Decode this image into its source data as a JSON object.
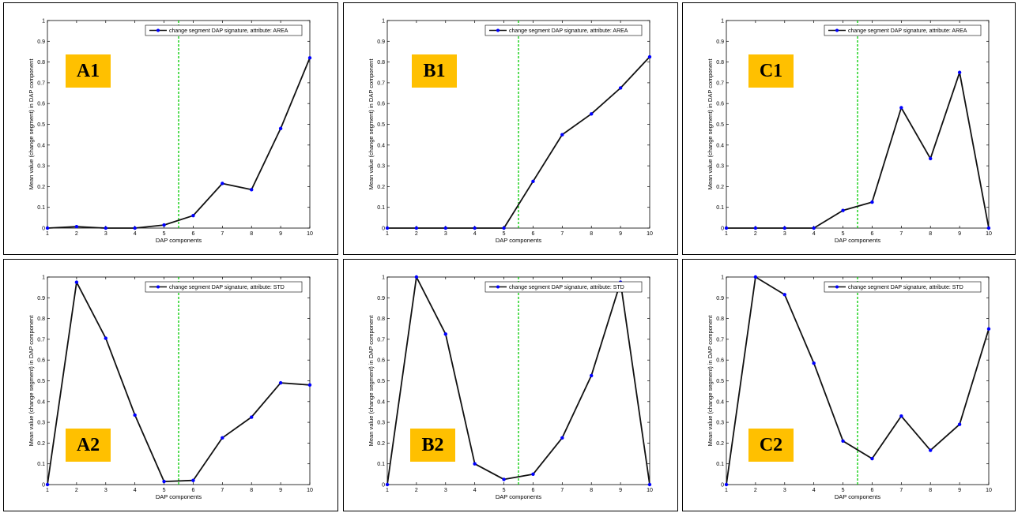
{
  "colors": {
    "series_line": "#111111",
    "series_marker": "#0000ff",
    "threshold_line": "#00cc00",
    "badge_bg": "#ffc000"
  },
  "chart_data": [
    {
      "panel": "A1",
      "type": "line",
      "x": [
        1,
        2,
        3,
        4,
        5,
        6,
        7,
        8,
        9,
        10
      ],
      "series": [
        {
          "name": "change segment DAP signature, attribute: AREA",
          "values": [
            0.0,
            0.007,
            0.0,
            0.0,
            0.015,
            0.06,
            0.215,
            0.185,
            0.48,
            0.82
          ]
        }
      ],
      "xlabel": "DAP components",
      "ylabel": "Mean value (change segment) in DAP component",
      "xlim": [
        1,
        10
      ],
      "ylim": [
        0,
        1
      ],
      "xticks": [
        "1",
        "2",
        "3",
        "4",
        "5",
        "6",
        "7",
        "8",
        "9",
        "10"
      ],
      "yticks": [
        "0",
        "0.1",
        "0.2",
        "0.3",
        "0.4",
        "0.5",
        "0.6",
        "0.7",
        "0.8",
        "0.9",
        "1"
      ],
      "threshold_x": 5.5,
      "legend": "top-right"
    },
    {
      "panel": "B1",
      "type": "line",
      "x": [
        1,
        2,
        3,
        4,
        5,
        6,
        7,
        8,
        9,
        10
      ],
      "series": [
        {
          "name": "change segment DAP signature, attribute: AREA",
          "values": [
            0.0,
            0.0,
            0.0,
            0.0,
            0.0,
            0.225,
            0.45,
            0.55,
            0.675,
            0.825
          ]
        }
      ],
      "xlabel": "DAP components",
      "ylabel": "Mean value (change segment) in DAP component",
      "xlim": [
        1,
        10
      ],
      "ylim": [
        0,
        1
      ],
      "xticks": [
        "1",
        "2",
        "3",
        "4",
        "5",
        "6",
        "7",
        "8",
        "9",
        "10"
      ],
      "yticks": [
        "0",
        "0.1",
        "0.2",
        "0.3",
        "0.4",
        "0.5",
        "0.6",
        "0.7",
        "0.8",
        "0.9",
        "1"
      ],
      "threshold_x": 5.5,
      "legend": "top-right"
    },
    {
      "panel": "C1",
      "type": "line",
      "x": [
        1,
        2,
        3,
        4,
        5,
        6,
        7,
        8,
        9,
        10
      ],
      "series": [
        {
          "name": "change segment DAP signature, attribute: AREA",
          "values": [
            0.0,
            0.0,
            0.0,
            0.0,
            0.085,
            0.125,
            0.58,
            0.335,
            0.75,
            0.0
          ]
        }
      ],
      "xlabel": "DAP components",
      "ylabel": "Mean value (change segment) in DAP component",
      "xlim": [
        1,
        10
      ],
      "ylim": [
        0,
        1
      ],
      "xticks": [
        "1",
        "2",
        "3",
        "4",
        "5",
        "6",
        "7",
        "8",
        "9",
        "10"
      ],
      "yticks": [
        "0",
        "0.1",
        "0.2",
        "0.3",
        "0.4",
        "0.5",
        "0.6",
        "0.7",
        "0.8",
        "0.9",
        "1"
      ],
      "threshold_x": 5.5,
      "legend": "top-right"
    },
    {
      "panel": "A2",
      "type": "line",
      "x": [
        1,
        2,
        3,
        4,
        5,
        6,
        7,
        8,
        9,
        10
      ],
      "series": [
        {
          "name": "change segment DAP signature, attribute: STD",
          "values": [
            0.0,
            0.975,
            0.705,
            0.335,
            0.015,
            0.02,
            0.225,
            0.325,
            0.49,
            0.48
          ]
        }
      ],
      "xlabel": "DAP components",
      "ylabel": "Mean value (change segment) in DAP component",
      "xlim": [
        1,
        10
      ],
      "ylim": [
        0,
        1
      ],
      "xticks": [
        "1",
        "2",
        "3",
        "4",
        "5",
        "6",
        "7",
        "8",
        "9",
        "10"
      ],
      "yticks": [
        "0",
        "0.1",
        "0.2",
        "0.3",
        "0.4",
        "0.5",
        "0.6",
        "0.7",
        "0.8",
        "0.9",
        "1"
      ],
      "threshold_x": 5.5,
      "legend": "top-right"
    },
    {
      "panel": "B2",
      "type": "line",
      "x": [
        1,
        2,
        3,
        4,
        5,
        6,
        7,
        8,
        9,
        10
      ],
      "series": [
        {
          "name": "change segment DAP signature, attribute: STD",
          "values": [
            0.0,
            1.0,
            0.725,
            0.1,
            0.025,
            0.05,
            0.225,
            0.525,
            0.975,
            0.0
          ]
        }
      ],
      "xlabel": "DAP components",
      "ylabel": "Mean value (change segment) in DAP component",
      "xlim": [
        1,
        10
      ],
      "ylim": [
        0,
        1
      ],
      "xticks": [
        "1",
        "2",
        "3",
        "4",
        "5",
        "6",
        "7",
        "8",
        "9",
        "10"
      ],
      "yticks": [
        "0",
        "0.1",
        "0.2",
        "0.3",
        "0.4",
        "0.5",
        "0.6",
        "0.7",
        "0.8",
        "0.9",
        "1"
      ],
      "threshold_x": 5.5,
      "legend": "top-right"
    },
    {
      "panel": "C2",
      "type": "line",
      "x": [
        1,
        2,
        3,
        4,
        5,
        6,
        7,
        8,
        9,
        10
      ],
      "series": [
        {
          "name": "change segment DAP signature, attribute: STD",
          "values": [
            0.0,
            1.0,
            0.915,
            0.585,
            0.21,
            0.125,
            0.33,
            0.165,
            0.29,
            0.75
          ]
        }
      ],
      "xlabel": "DAP components",
      "ylabel": "Mean value (change segment) in DAP component",
      "xlim": [
        1,
        10
      ],
      "ylim": [
        0,
        1
      ],
      "xticks": [
        "1",
        "2",
        "3",
        "4",
        "5",
        "6",
        "7",
        "8",
        "9",
        "10"
      ],
      "yticks": [
        "0",
        "0.1",
        "0.2",
        "0.3",
        "0.4",
        "0.5",
        "0.6",
        "0.7",
        "0.8",
        "0.9",
        "1"
      ],
      "threshold_x": 5.5,
      "legend": "top-right"
    }
  ]
}
